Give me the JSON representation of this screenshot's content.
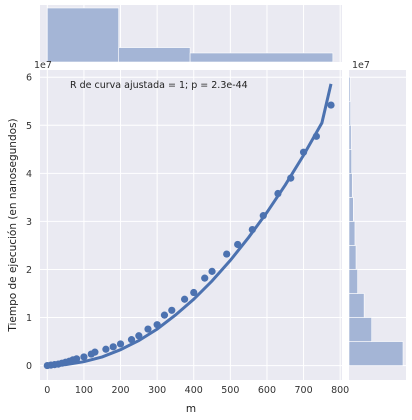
{
  "chart_data": {
    "type": "scatter",
    "xlabel": "m",
    "ylabel": "Tiempo de ejecución (en nanosegundos)",
    "y_offset_label": "1e7",
    "x_marg_offset_label": "1e7",
    "annotation": "R de curva ajustada = 1; p = 2.3e-44",
    "xlim": [
      -20,
      805
    ],
    "ylim": [
      -0.3,
      6.15
    ],
    "x_ticks": [
      0,
      100,
      200,
      300,
      400,
      500,
      600,
      700,
      800
    ],
    "x_tick_labels": [
      "0",
      "100",
      "200",
      "300",
      "400",
      "500",
      "600",
      "700",
      "800"
    ],
    "y_ticks": [
      0,
      1,
      2,
      3,
      4,
      5,
      6
    ],
    "y_tick_labels": [
      "0",
      "1",
      "2",
      "3",
      "4",
      "5",
      "6"
    ],
    "grid": true,
    "colors": {
      "points": "#4c72b0",
      "hist": "#a4b5d6",
      "background": "#eaeaf2",
      "grid": "#ffffff"
    },
    "scatter": {
      "name": "",
      "x": [
        0,
        10,
        20,
        30,
        40,
        50,
        60,
        70,
        80,
        100,
        120,
        130,
        160,
        180,
        200,
        230,
        250,
        275,
        300,
        320,
        340,
        375,
        400,
        430,
        450,
        490,
        520,
        560,
        590,
        630,
        665,
        700,
        735,
        775
      ],
      "y": [
        0,
        0.01,
        0.02,
        0.03,
        0.05,
        0.07,
        0.09,
        0.12,
        0.14,
        0.18,
        0.24,
        0.28,
        0.34,
        0.39,
        0.45,
        0.54,
        0.62,
        0.76,
        0.85,
        1.05,
        1.15,
        1.38,
        1.52,
        1.82,
        1.96,
        2.32,
        2.52,
        2.83,
        3.12,
        3.58,
        3.9,
        4.44,
        4.77,
        5.42
      ]
    },
    "fit_curve": {
      "x": [
        0,
        50,
        100,
        150,
        200,
        250,
        300,
        350,
        400,
        450,
        500,
        550,
        600,
        650,
        700,
        750,
        775
      ],
      "y": [
        0,
        0.02,
        0.08,
        0.18,
        0.33,
        0.52,
        0.76,
        1.05,
        1.38,
        1.76,
        2.19,
        2.67,
        3.19,
        3.76,
        4.38,
        5.05,
        5.86
      ]
    },
    "hist_x": {
      "bins": [
        [
          0,
          195
        ],
        [
          195,
          390
        ],
        [
          390,
          780
        ]
      ],
      "values": [
        3.0,
        0.8,
        0.5
      ]
    },
    "hist_y": {
      "bins": [
        [
          0,
          0.5
        ],
        [
          0.5,
          1.0
        ],
        [
          1.0,
          1.5
        ],
        [
          1.5,
          2.0
        ],
        [
          2.0,
          2.5
        ],
        [
          2.5,
          3.0
        ],
        [
          3.0,
          3.5
        ],
        [
          3.5,
          4.0
        ],
        [
          4.0,
          4.5
        ],
        [
          4.5,
          5.0
        ],
        [
          5.0,
          5.5
        ],
        [
          5.5,
          6.0
        ]
      ],
      "values": [
        1.0,
        0.42,
        0.28,
        0.16,
        0.13,
        0.11,
        0.08,
        0.06,
        0.05,
        0.04,
        0.03,
        0.025
      ]
    }
  }
}
